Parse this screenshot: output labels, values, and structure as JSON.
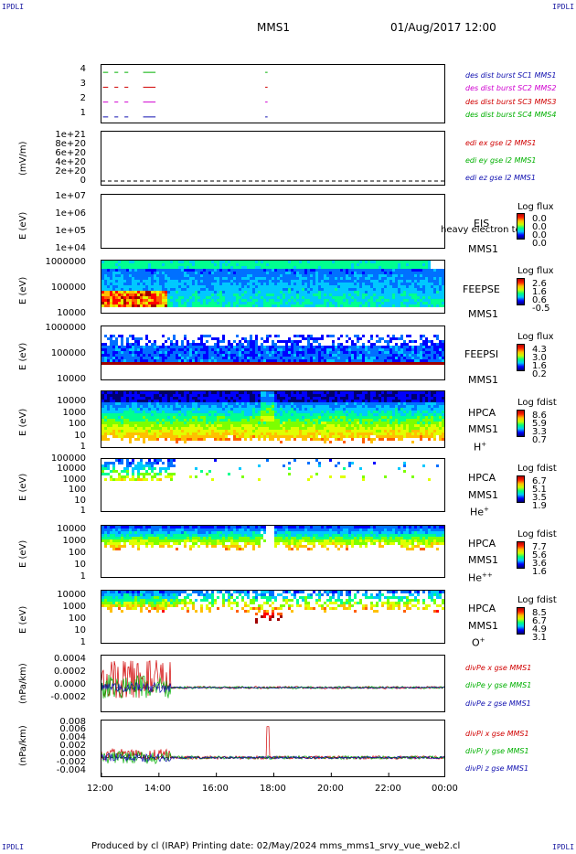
{
  "corners": {
    "tl": "IPDLI",
    "tr": "IPDLI",
    "bl": "IPDLI",
    "br": "IPDLI"
  },
  "header": {
    "spacecraft": "MMS1",
    "date": "01/Aug/2017 12:00"
  },
  "footer": "Produced by cl (IRAP)   Printing date: 02/May/2024   mms_mms1_srvy_vue_web2.cl",
  "x_ticks": [
    "12:00",
    "14:00",
    "16:00",
    "18:00",
    "20:00",
    "22:00",
    "00:00"
  ],
  "panels": [
    {
      "id": "p1",
      "ylabel": "",
      "yticks": [
        "4",
        "3",
        "2",
        "1"
      ],
      "legend": [
        {
          "text": "des dist burst SC1 MMS1",
          "color": "#1010b0"
        },
        {
          "text": "des dist burst SC2 MMS2",
          "color": "#d000d0"
        },
        {
          "text": "des dist burst SC3 MMS3",
          "color": "#d00000"
        },
        {
          "text": "des dist burst SC4 MMS4",
          "color": "#00b000"
        }
      ]
    },
    {
      "id": "p2",
      "ylabel": "(mV/m)",
      "yticks": [
        "1e+21",
        "8e+20",
        "6e+20",
        "4e+20",
        "2e+20",
        "0"
      ],
      "legend": [
        {
          "text": "edi ex gse l2 MMS1",
          "color": "#d00000"
        },
        {
          "text": "edi ey gse l2 MMS1",
          "color": "#00b000"
        },
        {
          "text": "edi ez gse l2 MMS1",
          "color": "#1010b0"
        }
      ]
    },
    {
      "id": "p3",
      "ylabel": "E (eV)",
      "yticks": [
        "1e+07",
        "1e+06",
        "1e+05",
        "1e+04"
      ],
      "inst": [
        "EIS",
        "MMS1"
      ],
      "overlay": "heavy electron to",
      "cb_title": "Log flux",
      "cb_vals": [
        "0.0",
        "0.0",
        "0.0",
        "0.0"
      ]
    },
    {
      "id": "p4",
      "ylabel": "E (eV)",
      "yticks": [
        "1000000",
        "100000",
        "10000"
      ],
      "inst": [
        "FEEPSE",
        "MMS1"
      ],
      "cb_title": "Log flux",
      "cb_vals": [
        "2.6",
        "1.6",
        "0.6",
        "-0.5"
      ]
    },
    {
      "id": "p5",
      "ylabel": "E (eV)",
      "yticks": [
        "1000000",
        "100000",
        "10000"
      ],
      "inst": [
        "FEEPSI",
        "MMS1"
      ],
      "cb_title": "Log flux",
      "cb_vals": [
        "4.3",
        "3.0",
        "1.6",
        "0.2"
      ]
    },
    {
      "id": "p6",
      "ylabel": "E (eV)",
      "yticks": [
        "10000",
        "1000",
        "100",
        "10",
        "1"
      ],
      "inst": [
        "HPCA",
        "MMS1",
        "H",
        "+"
      ],
      "cb_title": "Log fdist",
      "cb_vals": [
        "8.6",
        "5.9",
        "3.3",
        "0.7"
      ]
    },
    {
      "id": "p7",
      "ylabel": "E (eV)",
      "yticks": [
        "100000",
        "10000",
        "1000",
        "100",
        "10",
        "1"
      ],
      "inst": [
        "HPCA",
        "MMS1",
        "He",
        "+"
      ],
      "cb_title": "Log fdist",
      "cb_vals": [
        "6.7",
        "5.1",
        "3.5",
        "1.9"
      ]
    },
    {
      "id": "p8",
      "ylabel": "E (eV)",
      "yticks": [
        "10000",
        "1000",
        "100",
        "10",
        "1"
      ],
      "inst": [
        "HPCA",
        "MMS1",
        "He",
        "++"
      ],
      "cb_title": "Log fdist",
      "cb_vals": [
        "7.7",
        "5.6",
        "3.6",
        "1.6"
      ]
    },
    {
      "id": "p9",
      "ylabel": "E (eV)",
      "yticks": [
        "10000",
        "1000",
        "100",
        "10",
        "1"
      ],
      "inst": [
        "HPCA",
        "MMS1",
        "O",
        "+"
      ],
      "cb_title": "Log fdist",
      "cb_vals": [
        "8.5",
        "6.7",
        "4.9",
        "3.1"
      ]
    },
    {
      "id": "p10",
      "ylabel": "(nPa/km)",
      "yticks": [
        "0.0004",
        "0.0002",
        "0.0000",
        "-0.0002"
      ],
      "legend": [
        {
          "text": "divPe x gse MMS1",
          "color": "#d00000"
        },
        {
          "text": "divPe y gse MMS1",
          "color": "#00b000"
        },
        {
          "text": "divPe z gse MMS1",
          "color": "#1010b0"
        }
      ]
    },
    {
      "id": "p11",
      "ylabel": "(nPa/km)",
      "yticks": [
        "0.008",
        "0.006",
        "0.004",
        "0.002",
        "0.000",
        "-0.002",
        "-0.004"
      ],
      "legend": [
        {
          "text": "divPi x gse MMS1",
          "color": "#d00000"
        },
        {
          "text": "divPi y gse MMS1",
          "color": "#00b000"
        },
        {
          "text": "divPi z gse MMS1",
          "color": "#1010b0"
        }
      ]
    }
  ],
  "chart_data": [
    {
      "type": "line",
      "panel": "des dist burst",
      "ylim": [
        0.5,
        4.5
      ],
      "x_range": [
        "12:00",
        "00:00"
      ],
      "series": [
        {
          "name": "des dist burst SC1 MMS1",
          "color": "#1010b0",
          "level": 1
        },
        {
          "name": "des dist burst SC2 MMS2",
          "color": "#d000d0",
          "level": 2
        },
        {
          "name": "des dist burst SC3 MMS3",
          "color": "#d00000",
          "level": 3
        },
        {
          "name": "des dist burst SC4 MMS4",
          "color": "#00b000",
          "level": 4
        }
      ],
      "intervals_hours": [
        [
          0.05,
          0.2
        ],
        [
          0.45,
          0.55
        ],
        [
          0.8,
          0.9
        ],
        [
          1.45,
          1.85
        ],
        [
          5.7,
          5.75
        ]
      ]
    },
    {
      "type": "line",
      "panel": "EDI E field",
      "ylabel": "(mV/m)",
      "ylim": [
        0,
        1e+21
      ],
      "series": [
        {
          "name": "edi ex gse l2 MMS1",
          "color": "#d00000"
        },
        {
          "name": "edi ey gse l2 MMS1",
          "color": "#00b000"
        },
        {
          "name": "edi ez gse l2 MMS1",
          "color": "#1010b0"
        }
      ],
      "note_value": 0
    },
    {
      "type": "heatmap",
      "panel": "FEEPSE",
      "ylabel": "E (eV)",
      "ylim": [
        10000,
        1000000
      ],
      "scale": "log",
      "colorbar": [
        -0.5,
        2.6
      ]
    },
    {
      "type": "heatmap",
      "panel": "FEEPSI",
      "ylabel": "E (eV)",
      "ylim": [
        10000,
        1000000
      ],
      "scale": "log",
      "colorbar": [
        0.2,
        4.3
      ]
    },
    {
      "type": "heatmap",
      "panel": "HPCA H+",
      "ylabel": "E (eV)",
      "ylim": [
        1,
        30000
      ],
      "scale": "log",
      "colorbar": [
        0.7,
        8.6
      ]
    },
    {
      "type": "heatmap",
      "panel": "HPCA He+",
      "ylabel": "E (eV)",
      "ylim": [
        1,
        100000
      ],
      "scale": "log",
      "colorbar": [
        1.9,
        6.7
      ]
    },
    {
      "type": "heatmap",
      "panel": "HPCA He++",
      "ylabel": "E (eV)",
      "ylim": [
        1,
        10000
      ],
      "scale": "log",
      "colorbar": [
        1.6,
        7.7
      ]
    },
    {
      "type": "heatmap",
      "panel": "HPCA O+",
      "ylabel": "E (eV)",
      "ylim": [
        1,
        10000
      ],
      "scale": "log",
      "colorbar": [
        3.1,
        8.5
      ]
    },
    {
      "type": "line",
      "panel": "divPe",
      "ylabel": "(nPa/km)",
      "ylim": [
        -0.0004,
        0.0005
      ],
      "series": [
        {
          "name": "divPe x gse MMS1",
          "color": "#d00000",
          "amp_early": 0.0003,
          "amp_late": 2e-05
        },
        {
          "name": "divPe y gse MMS1",
          "color": "#00b000",
          "amp_early": 0.0002,
          "amp_late": 2e-05
        },
        {
          "name": "divPe z gse MMS1",
          "color": "#1010b0",
          "amp_early": 8e-05,
          "amp_late": 1e-05
        }
      ]
    },
    {
      "type": "line",
      "panel": "divPi",
      "ylabel": "(nPa/km)",
      "ylim": [
        -0.005,
        0.009
      ],
      "series": [
        {
          "name": "divPi x gse MMS1",
          "color": "#d00000",
          "amp_early": 0.0015,
          "amp_late": 0.0004
        },
        {
          "name": "divPi y gse MMS1",
          "color": "#00b000",
          "amp_early": 0.0015,
          "amp_late": 0.0004
        },
        {
          "name": "divPi z gse MMS1",
          "color": "#1010b0",
          "amp_early": 0.001,
          "amp_late": 0.0003
        }
      ],
      "spike": {
        "hour": 5.8,
        "value": 0.0075
      }
    }
  ]
}
